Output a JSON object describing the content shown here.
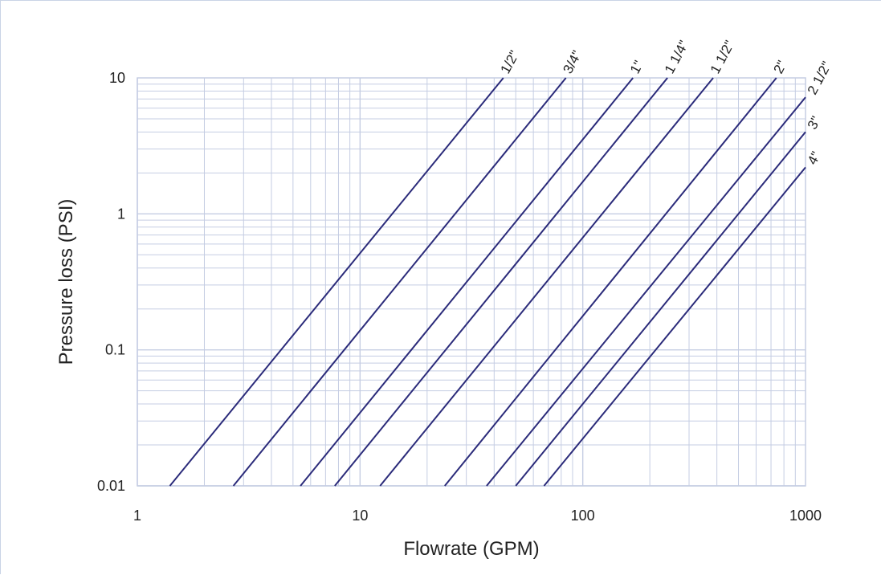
{
  "chart_data": {
    "type": "line",
    "xscale": "log",
    "yscale": "log",
    "xlim": [
      1,
      1000
    ],
    "ylim": [
      0.01,
      10
    ],
    "xlabel": "Flowrate (GPM)",
    "ylabel": "Pressure loss (PSI)",
    "x_ticks": [
      "1",
      "10",
      "100",
      "1000"
    ],
    "y_ticks": [
      "0.01",
      "0.1",
      "1",
      "10"
    ],
    "grid": true,
    "line_color": "#2b2b7a",
    "grid_color": "#c5cde3",
    "series": [
      {
        "name": "1/2\"",
        "points": [
          [
            1.4,
            0.01
          ],
          [
            44,
            10
          ]
        ]
      },
      {
        "name": "3/4\"",
        "points": [
          [
            2.7,
            0.01
          ],
          [
            84,
            10
          ]
        ]
      },
      {
        "name": "1\"",
        "points": [
          [
            5.4,
            0.01
          ],
          [
            168,
            10
          ]
        ]
      },
      {
        "name": "1 1/4\"",
        "points": [
          [
            7.7,
            0.01
          ],
          [
            240,
            10
          ]
        ]
      },
      {
        "name": "1 1/2\"",
        "points": [
          [
            12.3,
            0.01
          ],
          [
            385,
            10
          ]
        ]
      },
      {
        "name": "2\"",
        "points": [
          [
            24,
            0.01
          ],
          [
            740,
            10
          ]
        ]
      },
      {
        "name": "2 1/2\"",
        "points": [
          [
            37,
            0.01
          ],
          [
            1000,
            7.2
          ]
        ]
      },
      {
        "name": "3\"",
        "points": [
          [
            50,
            0.01
          ],
          [
            1000,
            4.0
          ]
        ]
      },
      {
        "name": "4\"",
        "points": [
          [
            67,
            0.01
          ],
          [
            1000,
            2.2
          ]
        ]
      }
    ]
  }
}
